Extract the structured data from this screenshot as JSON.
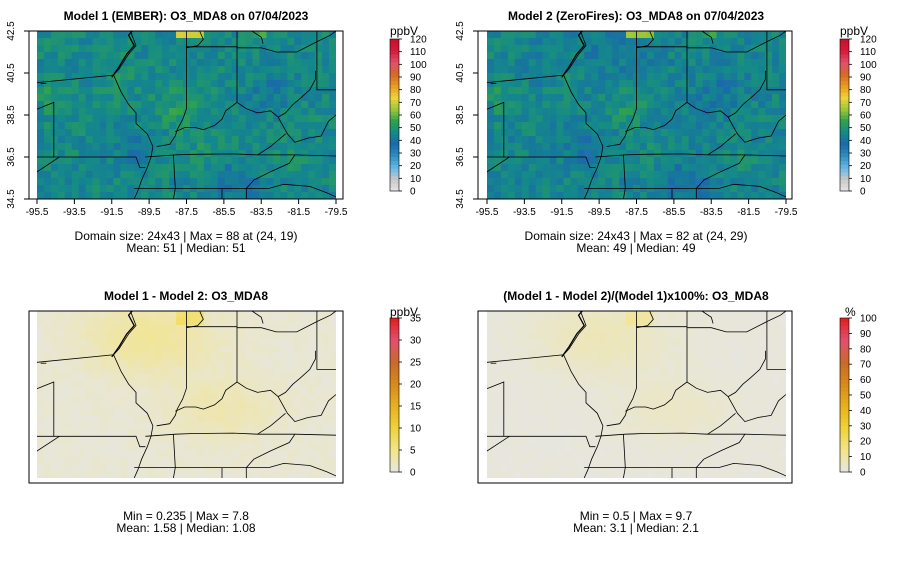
{
  "chart_data": [
    {
      "type": "heatmap",
      "title": "Model 1 (EMBER): O3_MDA8 on 07/04/2023",
      "xlim": [
        -95.5,
        -79.5
      ],
      "ylim": [
        34.5,
        42.5
      ],
      "x_ticks": [
        "-95.5",
        "-93.5",
        "-91.5",
        "-89.5",
        "-87.5",
        "-85.5",
        "-83.5",
        "-81.5",
        "-79.5"
      ],
      "y_ticks": [
        "34.5",
        "36.5",
        "38.5",
        "40.5",
        "42.5"
      ],
      "grid_rows": 24,
      "grid_cols": 43,
      "colorbar": {
        "unit": "ppbV",
        "ticks": [
          "0",
          "10",
          "20",
          "30",
          "40",
          "50",
          "60",
          "70",
          "80",
          "90",
          "100",
          "110",
          "120"
        ],
        "range": [
          0,
          120
        ]
      },
      "stats": [
        "Domain size: 24x43 | Max = 88 at (24, 19)",
        "Mean: 51 |  Median: 51"
      ],
      "summary": {
        "max": 88,
        "max_cell": [
          24,
          19
        ],
        "mean": 51,
        "median": 51
      }
    },
    {
      "type": "heatmap",
      "title": "Model 2 (ZeroFires): O3_MDA8 on 07/04/2023",
      "xlim": [
        -95.5,
        -79.5
      ],
      "ylim": [
        34.5,
        42.5
      ],
      "x_ticks": [
        "-95.5",
        "-93.5",
        "-91.5",
        "-89.5",
        "-87.5",
        "-85.5",
        "-83.5",
        "-81.5",
        "-79.5"
      ],
      "y_ticks": [
        "34.5",
        "36.5",
        "38.5",
        "40.5",
        "42.5"
      ],
      "grid_rows": 24,
      "grid_cols": 43,
      "colorbar": {
        "unit": "ppbV",
        "ticks": [
          "0",
          "10",
          "20",
          "30",
          "40",
          "50",
          "60",
          "70",
          "80",
          "90",
          "100",
          "110",
          "120"
        ],
        "range": [
          0,
          120
        ]
      },
      "stats": [
        "Domain size: 24x43 | Max = 82 at (24, 29)",
        "Mean: 49 |  Median: 49"
      ],
      "summary": {
        "max": 82,
        "max_cell": [
          24,
          29
        ],
        "mean": 49,
        "median": 49
      }
    },
    {
      "type": "heatmap",
      "title": "Model 1 - Model 2: O3_MDA8",
      "xlim": [
        -95.5,
        -79.5
      ],
      "ylim": [
        34.5,
        42.5
      ],
      "grid_rows": 24,
      "grid_cols": 43,
      "colorbar": {
        "unit": "ppbV",
        "ticks": [
          "0",
          "5",
          "10",
          "15",
          "20",
          "25",
          "30",
          "35"
        ],
        "range": [
          0,
          35
        ]
      },
      "stats": [
        "Min = 0.235 | Max = 7.8",
        "Mean: 1.58 |  Median: 1.08"
      ],
      "summary": {
        "min": 0.235,
        "max": 7.8,
        "mean": 1.58,
        "median": 1.08
      }
    },
    {
      "type": "heatmap",
      "title": "(Model 1 - Model 2)/(Model 1)x100%: O3_MDA8",
      "xlim": [
        -95.5,
        -79.5
      ],
      "ylim": [
        34.5,
        42.5
      ],
      "grid_rows": 24,
      "grid_cols": 43,
      "colorbar": {
        "unit": "%",
        "ticks": [
          "0",
          "10",
          "20",
          "30",
          "40",
          "50",
          "60",
          "70",
          "80",
          "90",
          "100"
        ],
        "range": [
          0,
          100
        ]
      },
      "stats": [
        "Min = 0.5 | Max = 9.7",
        "Mean: 3.1 |  Median: 2.1"
      ],
      "summary": {
        "min": 0.5,
        "max": 9.7,
        "mean": 3.1,
        "median": 2.1
      }
    }
  ],
  "colors": {
    "concentration_scale": [
      "#e6e6e6",
      "#c8c8c8",
      "#66b8e6",
      "#2f8fbf",
      "#1a6aa8",
      "#14898a",
      "#2fa24e",
      "#9cc63a",
      "#f0d23a",
      "#e89a20",
      "#d4682a",
      "#e0506e",
      "#d61a3c",
      "#c8102e"
    ],
    "difference_scale": [
      "#e6e6e6",
      "#f3e58a",
      "#f0d23a",
      "#e8b020",
      "#d9881e",
      "#c86a2a",
      "#e0506e",
      "#e01e1e"
    ],
    "boundary": "#000000"
  }
}
